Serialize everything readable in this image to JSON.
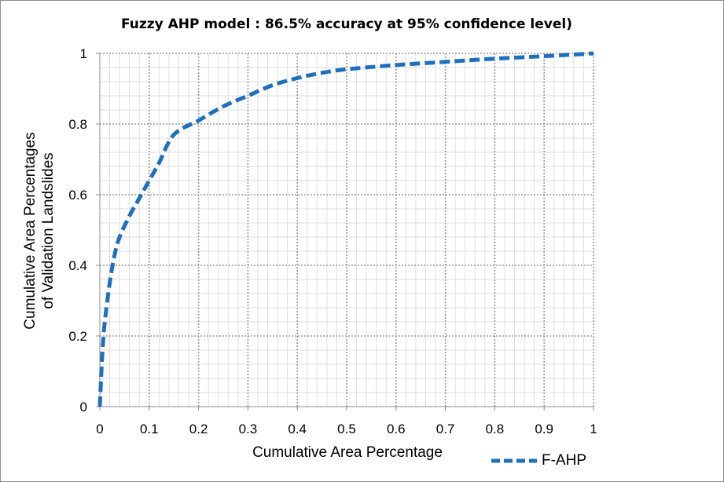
{
  "chart_data": {
    "type": "line",
    "title": "Fuzzy AHP model : 86.5% accuracy at 95% confidence level)",
    "xlabel": "Cumulative Area Percentage",
    "ylabel": [
      "Cumulative Area Percentages",
      "of Validation Landslides"
    ],
    "xlim": [
      0,
      1
    ],
    "ylim": [
      0,
      1
    ],
    "x_ticks": [
      "0",
      "0.1",
      "0.2",
      "0.3",
      "0.4",
      "0.5",
      "0.6",
      "0.7",
      "0.8",
      "0.9",
      "1"
    ],
    "y_ticks": [
      "0",
      "0.2",
      "0.4",
      "0.6",
      "0.8",
      "1"
    ],
    "grid": true,
    "legend_position": "bottom-right",
    "series": [
      {
        "name": "F-AHP",
        "color": "#1f6fbf",
        "line_style": "dashed",
        "x": [
          0,
          0.005,
          0.01,
          0.02,
          0.03,
          0.04,
          0.06,
          0.08,
          0.1,
          0.12,
          0.15,
          0.2,
          0.25,
          0.3,
          0.35,
          0.4,
          0.45,
          0.5,
          0.6,
          0.7,
          0.8,
          0.9,
          1.0
        ],
        "y": [
          0,
          0.15,
          0.24,
          0.35,
          0.43,
          0.48,
          0.54,
          0.59,
          0.64,
          0.69,
          0.77,
          0.81,
          0.85,
          0.88,
          0.91,
          0.93,
          0.945,
          0.955,
          0.967,
          0.976,
          0.985,
          0.992,
          1.0
        ]
      }
    ]
  }
}
